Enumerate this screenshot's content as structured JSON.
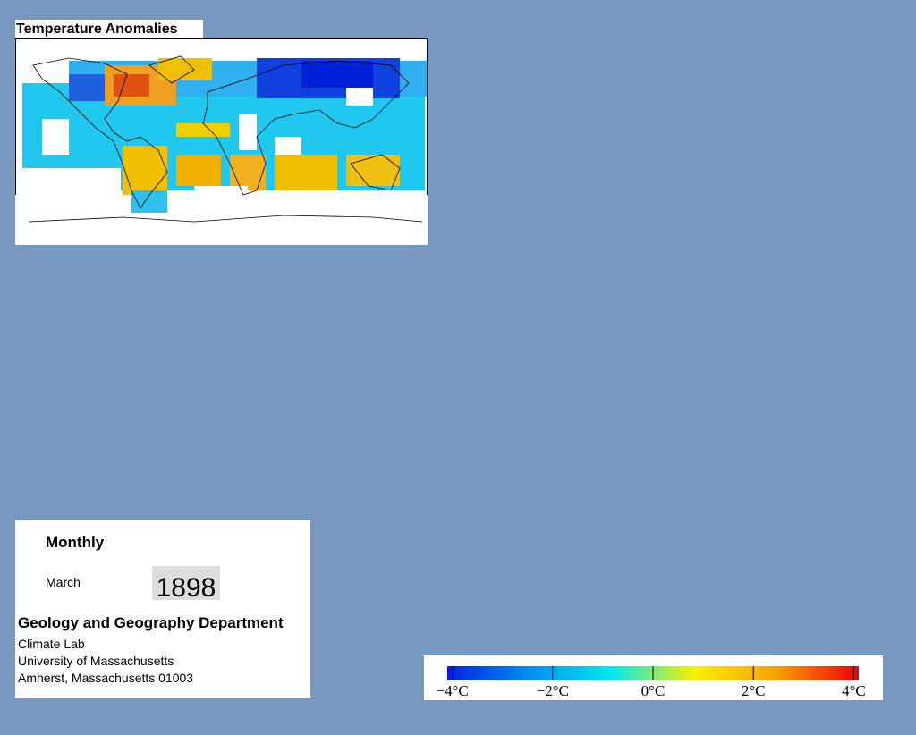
{
  "map": {
    "title": "Temperature Anomalies"
  },
  "info": {
    "period": "Monthly",
    "month": "March",
    "year": "1898",
    "department": "Geology and Geography Department",
    "address": [
      "Climate Lab",
      "University of Massachusetts",
      "Amherst, Massachusetts 01003"
    ]
  },
  "colorbar": {
    "range": [
      -4.1,
      4.1
    ],
    "colors": [
      "#0020e0",
      "#0090f0",
      "#00e8f0",
      "#f8f000",
      "#f8a000",
      "#f00000"
    ],
    "ticks": [
      {
        "value": -4,
        "label": "−4°C"
      },
      {
        "value": -2,
        "label": "−2°C"
      },
      {
        "value": 0,
        "label": "0°C"
      },
      {
        "value": 2,
        "label": "2°C"
      },
      {
        "value": 4,
        "label": "4°C"
      }
    ]
  }
}
